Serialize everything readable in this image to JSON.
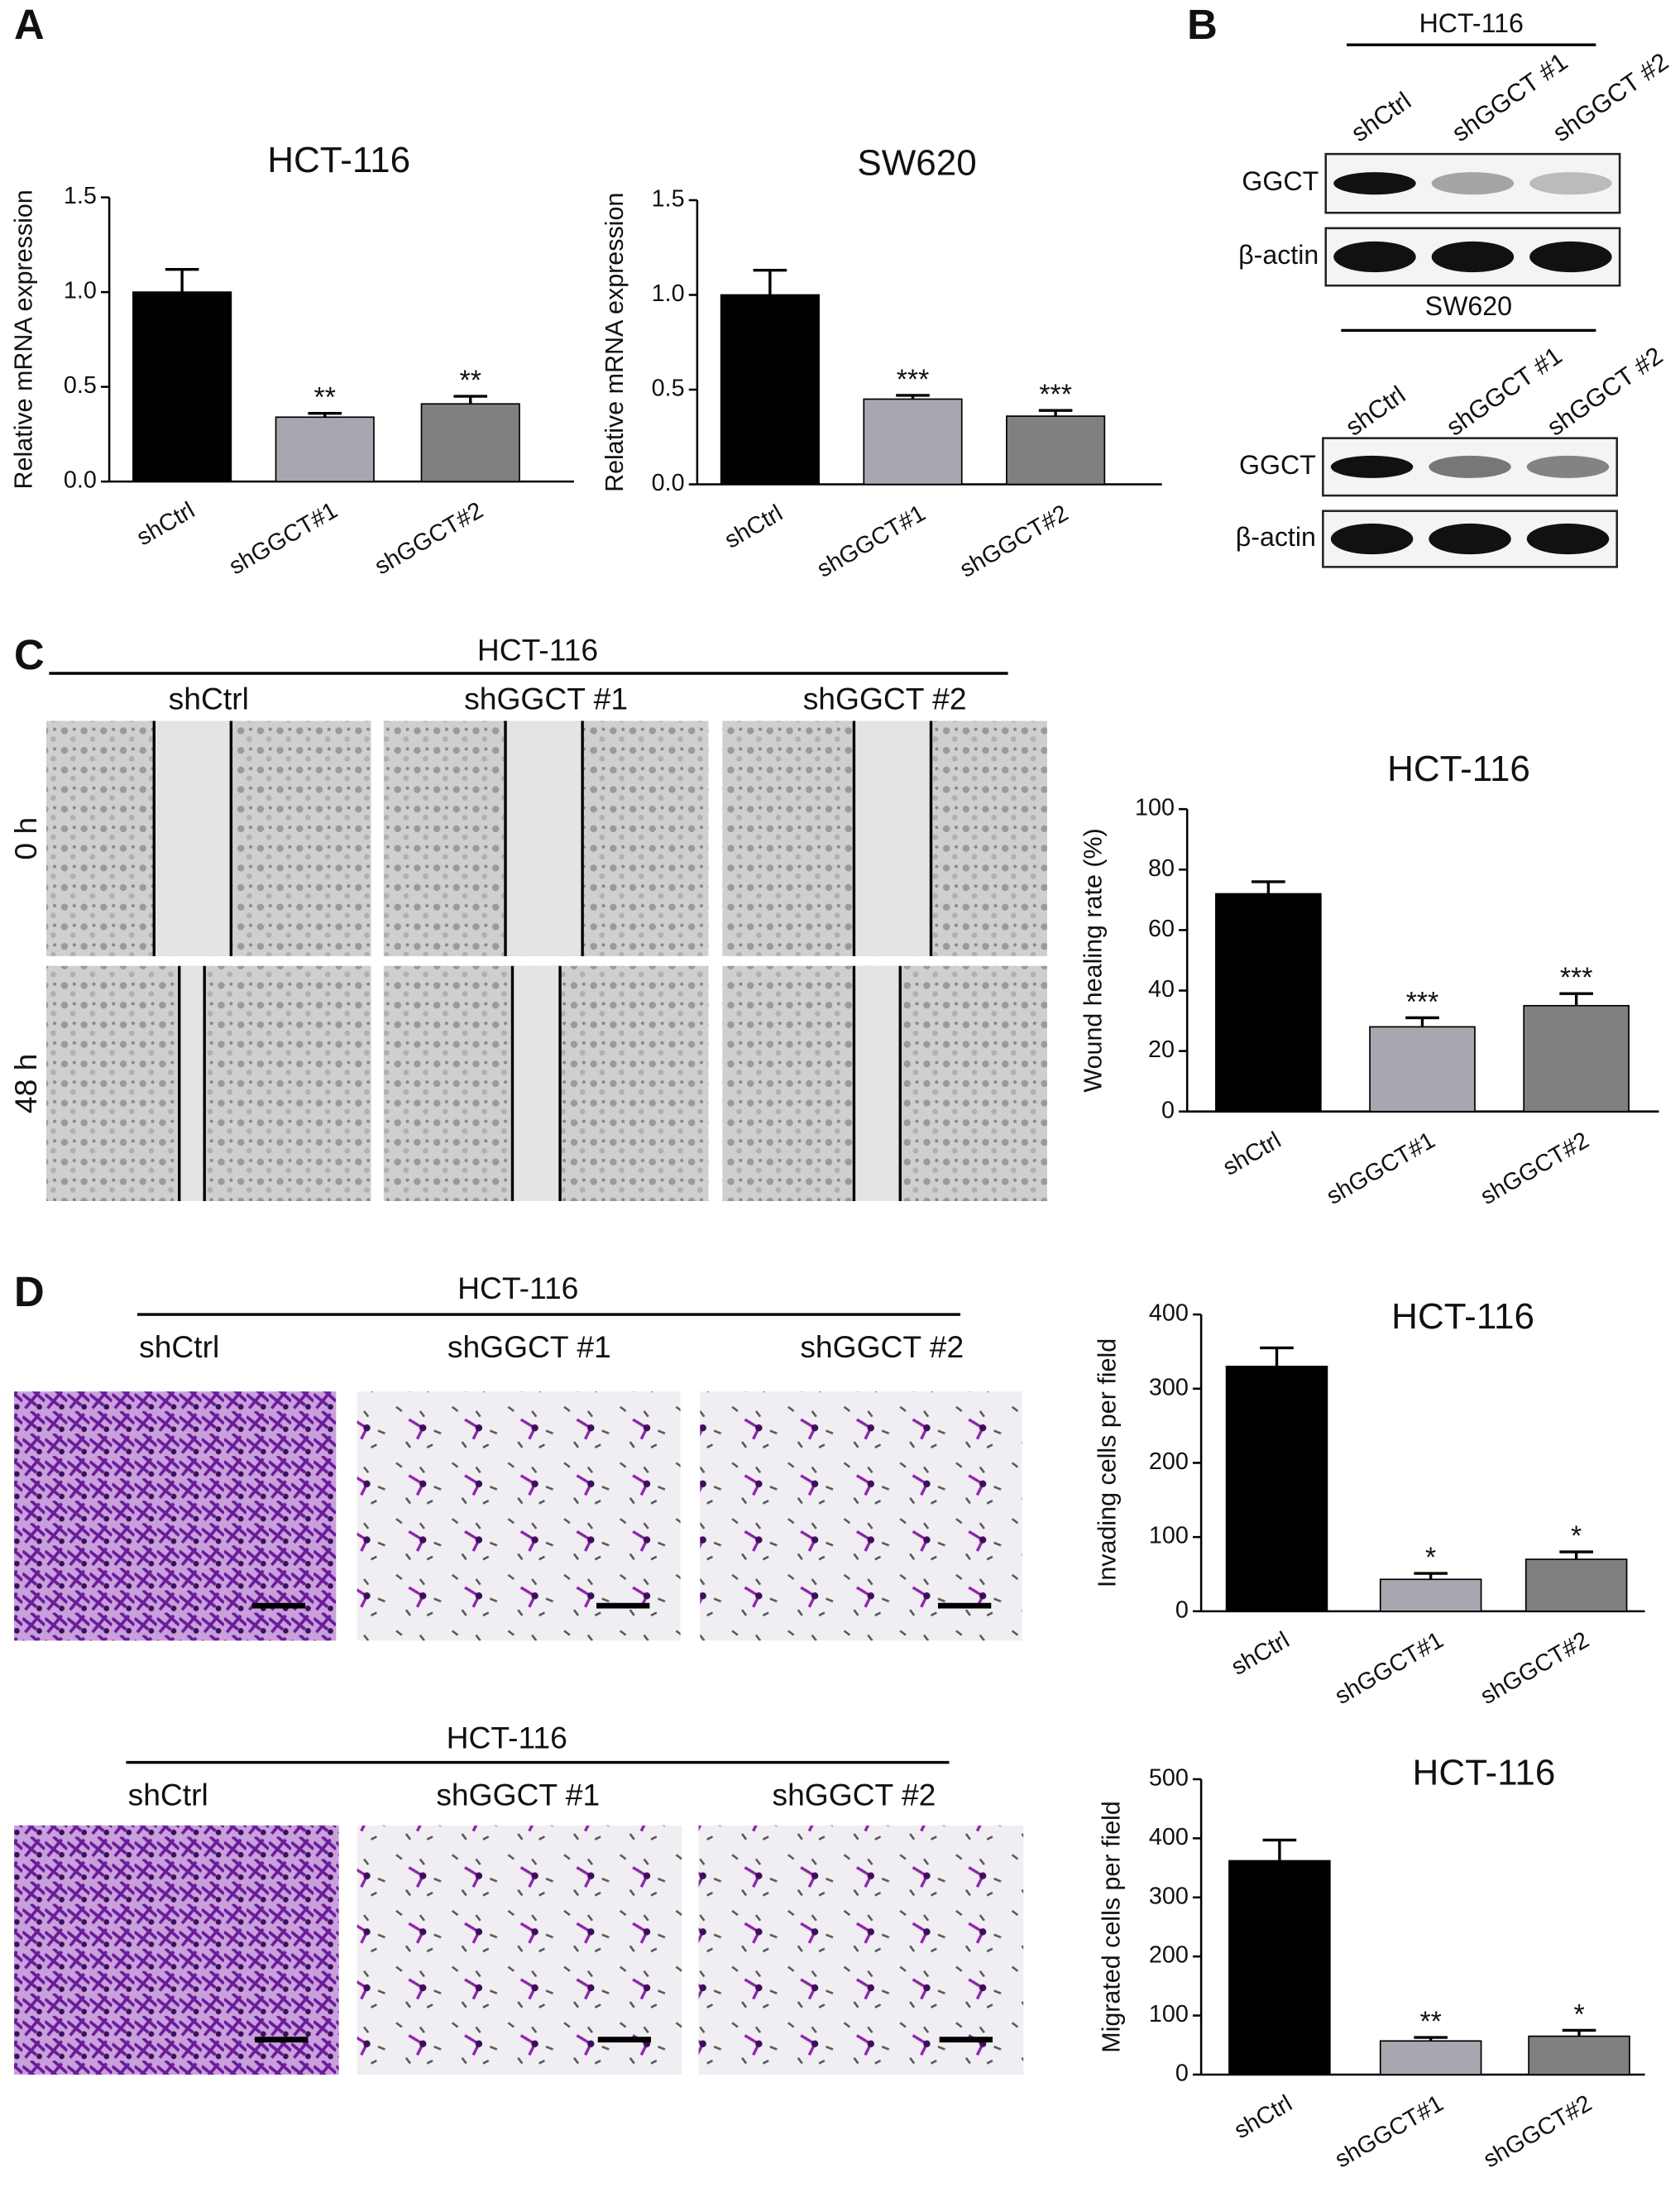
{
  "panel_labels": [
    "A",
    "B",
    "C",
    "D"
  ],
  "chart_data": [
    {
      "type": "bar",
      "title": "HCT-116",
      "ylabel": "Relative mRNA expression",
      "categories": [
        "shCtrl",
        "shGGCT#1",
        "shGGCT#2"
      ],
      "values": [
        1.0,
        0.34,
        0.41
      ],
      "errors": [
        0.12,
        0.02,
        0.04
      ],
      "colors": [
        "#000000",
        "#a7a7b0",
        "#808080"
      ],
      "annotations": [
        null,
        "**",
        "**"
      ],
      "ylim": [
        0,
        1.5
      ],
      "yticks": [
        {
          "value": 0,
          "label": "0.0"
        },
        0.5,
        {
          "value": 1,
          "label": "1.0"
        },
        1.5
      ]
    },
    {
      "type": "bar",
      "title": "SW620",
      "ylabel": "Relative mRNA expression",
      "categories": [
        "shCtrl",
        "shGGCT#1",
        "shGGCT#2"
      ],
      "values": [
        1.0,
        0.45,
        0.36
      ],
      "errors": [
        0.13,
        0.02,
        0.03
      ],
      "colors": [
        "#000000",
        "#a7a7b0",
        "#808080"
      ],
      "annotations": [
        null,
        "***",
        "***"
      ],
      "ylim": [
        0,
        1.5
      ],
      "yticks": [
        {
          "value": 0,
          "label": "0.0"
        },
        0.5,
        {
          "value": 1,
          "label": "1.0"
        },
        1.5
      ]
    },
    {
      "type": "bar",
      "title": "HCT-116",
      "ylabel": "Wound healing rate (%)",
      "categories": [
        "shCtrl",
        "shGGCT#1",
        "shGGCT#2"
      ],
      "values": [
        72,
        28,
        35
      ],
      "errors": [
        4,
        3,
        4
      ],
      "colors": [
        "#000000",
        "#a7a7b0",
        "#808080"
      ],
      "annotations": [
        null,
        "***",
        "***"
      ],
      "ylim": [
        0,
        100
      ],
      "yticks": [
        0,
        20,
        40,
        60,
        80,
        100
      ]
    },
    {
      "type": "bar",
      "title": "HCT-116",
      "ylabel": "Invading cells per field",
      "categories": [
        "shCtrl",
        "shGGCT#1",
        "shGGCT#2"
      ],
      "values": [
        330,
        43,
        70
      ],
      "errors": [
        25,
        8,
        10
      ],
      "colors": [
        "#000000",
        "#a7a7b0",
        "#808080"
      ],
      "annotations": [
        null,
        "*",
        "*"
      ],
      "ylim": [
        0,
        400
      ],
      "yticks": [
        0,
        100,
        200,
        300,
        400
      ]
    },
    {
      "type": "bar",
      "title": "HCT-116",
      "ylabel": "Migrated cells per field",
      "categories": [
        "shCtrl",
        "shGGCT#1",
        "shGGCT#2"
      ],
      "values": [
        362,
        57,
        65
      ],
      "errors": [
        35,
        6,
        10
      ],
      "colors": [
        "#000000",
        "#a7a7b0",
        "#808080"
      ],
      "annotations": [
        null,
        "**",
        "*"
      ],
      "ylim": [
        0,
        500
      ],
      "yticks": [
        0,
        100,
        200,
        300,
        400,
        500
      ]
    }
  ],
  "western_blot": [
    {
      "title": "HCT-116",
      "lanes": [
        "shCtrl",
        "shGGCT #1",
        "shGGCT #2"
      ],
      "bands": [
        "GGCT",
        "β-actin"
      ]
    },
    {
      "title": "SW620",
      "lanes": [
        "shCtrl",
        "shGGCT #1",
        "shGGCT #2"
      ],
      "bands": [
        "GGCT",
        "β-actin"
      ]
    }
  ],
  "wound_assay": {
    "title": "HCT-116",
    "columns": [
      "shCtrl",
      "shGGCT #1",
      "shGGCT #2"
    ],
    "rows": [
      "0 h",
      "48 h"
    ]
  },
  "transwell": [
    {
      "title": "HCT-116",
      "columns": [
        "shCtrl",
        "shGGCT #1",
        "shGGCT #2"
      ]
    },
    {
      "title": "HCT-116",
      "columns": [
        "shCtrl",
        "shGGCT #1",
        "shGGCT #2"
      ]
    }
  ]
}
